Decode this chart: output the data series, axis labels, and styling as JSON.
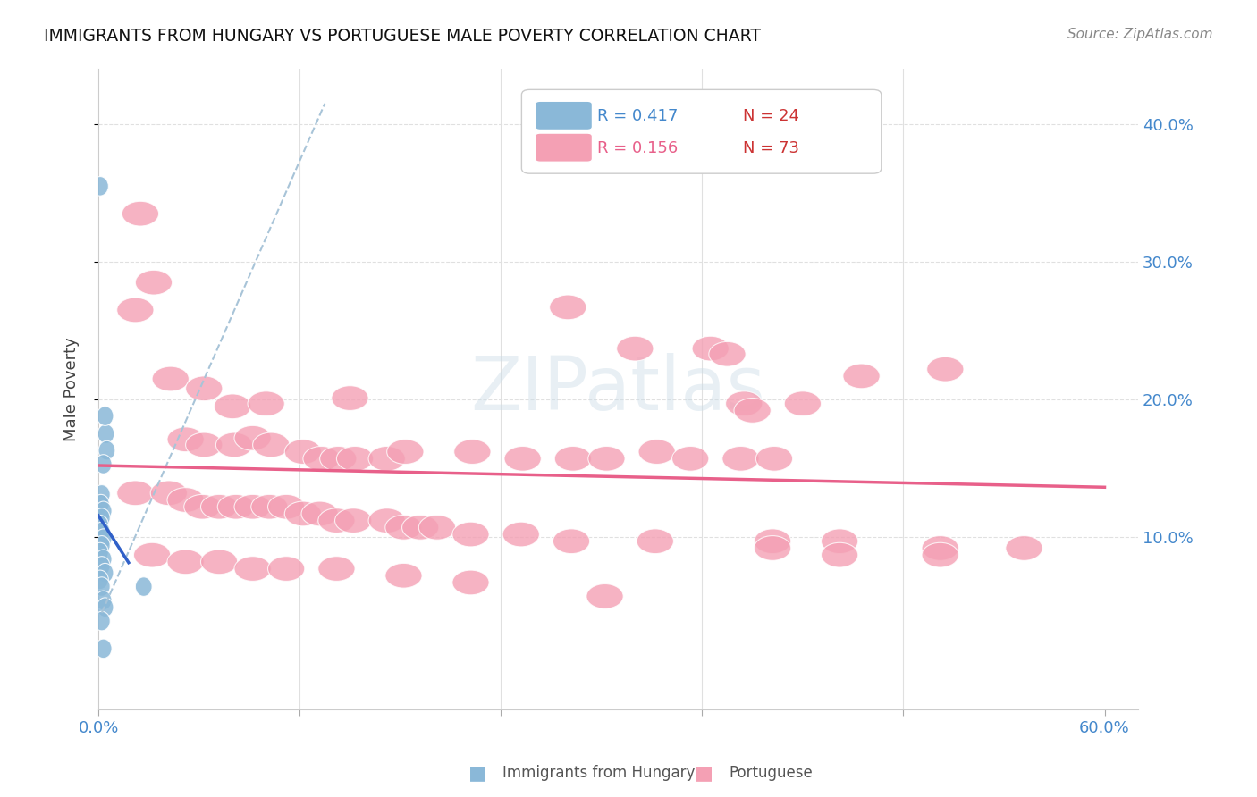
{
  "title": "IMMIGRANTS FROM HUNGARY VS PORTUGUESE MALE POVERTY CORRELATION CHART",
  "source": "Source: ZipAtlas.com",
  "ylabel": "Male Poverty",
  "xlim": [
    0.0,
    0.62
  ],
  "ylim": [
    -0.025,
    0.44
  ],
  "hungary_color": "#8ab8d8",
  "portuguese_color": "#f4a0b4",
  "hungary_line_color": "#3060c8",
  "portuguese_line_color": "#e8608a",
  "dashed_line_color": "#a8c4d8",
  "hungary_r": "0.417",
  "hungary_n": "24",
  "portuguese_r": "0.156",
  "portuguese_n": "73",
  "hungary_points": [
    [
      0.001,
      0.355
    ],
    [
      0.0045,
      0.175
    ],
    [
      0.005,
      0.163
    ],
    [
      0.003,
      0.153
    ],
    [
      0.004,
      0.188
    ],
    [
      0.002,
      0.131
    ],
    [
      0.0015,
      0.124
    ],
    [
      0.003,
      0.119
    ],
    [
      0.002,
      0.114
    ],
    [
      0.001,
      0.109
    ],
    [
      0.002,
      0.104
    ],
    [
      0.003,
      0.099
    ],
    [
      0.002,
      0.094
    ],
    [
      0.001,
      0.089
    ],
    [
      0.003,
      0.084
    ],
    [
      0.002,
      0.079
    ],
    [
      0.004,
      0.074
    ],
    [
      0.001,
      0.069
    ],
    [
      0.002,
      0.064
    ],
    [
      0.003,
      0.054
    ],
    [
      0.004,
      0.049
    ],
    [
      0.002,
      0.039
    ],
    [
      0.027,
      0.064
    ],
    [
      0.003,
      0.019
    ]
  ],
  "portuguese_points": [
    [
      0.025,
      0.335
    ],
    [
      0.033,
      0.285
    ],
    [
      0.022,
      0.265
    ],
    [
      0.043,
      0.215
    ],
    [
      0.08,
      0.195
    ],
    [
      0.063,
      0.208
    ],
    [
      0.1,
      0.197
    ],
    [
      0.15,
      0.201
    ],
    [
      0.28,
      0.267
    ],
    [
      0.32,
      0.237
    ],
    [
      0.365,
      0.237
    ],
    [
      0.375,
      0.233
    ],
    [
      0.385,
      0.197
    ],
    [
      0.39,
      0.192
    ],
    [
      0.42,
      0.197
    ],
    [
      0.455,
      0.217
    ],
    [
      0.505,
      0.222
    ],
    [
      0.052,
      0.171
    ],
    [
      0.063,
      0.167
    ],
    [
      0.081,
      0.167
    ],
    [
      0.092,
      0.172
    ],
    [
      0.103,
      0.167
    ],
    [
      0.122,
      0.162
    ],
    [
      0.133,
      0.157
    ],
    [
      0.143,
      0.157
    ],
    [
      0.153,
      0.157
    ],
    [
      0.172,
      0.157
    ],
    [
      0.183,
      0.162
    ],
    [
      0.223,
      0.162
    ],
    [
      0.253,
      0.157
    ],
    [
      0.283,
      0.157
    ],
    [
      0.303,
      0.157
    ],
    [
      0.333,
      0.162
    ],
    [
      0.353,
      0.157
    ],
    [
      0.383,
      0.157
    ],
    [
      0.403,
      0.157
    ],
    [
      0.022,
      0.132
    ],
    [
      0.042,
      0.132
    ],
    [
      0.052,
      0.127
    ],
    [
      0.062,
      0.122
    ],
    [
      0.072,
      0.122
    ],
    [
      0.082,
      0.122
    ],
    [
      0.092,
      0.122
    ],
    [
      0.102,
      0.122
    ],
    [
      0.112,
      0.122
    ],
    [
      0.122,
      0.117
    ],
    [
      0.132,
      0.117
    ],
    [
      0.142,
      0.112
    ],
    [
      0.152,
      0.112
    ],
    [
      0.172,
      0.112
    ],
    [
      0.182,
      0.107
    ],
    [
      0.192,
      0.107
    ],
    [
      0.202,
      0.107
    ],
    [
      0.222,
      0.102
    ],
    [
      0.252,
      0.102
    ],
    [
      0.282,
      0.097
    ],
    [
      0.332,
      0.097
    ],
    [
      0.402,
      0.097
    ],
    [
      0.442,
      0.097
    ],
    [
      0.502,
      0.092
    ],
    [
      0.552,
      0.092
    ],
    [
      0.032,
      0.087
    ],
    [
      0.052,
      0.082
    ],
    [
      0.072,
      0.082
    ],
    [
      0.092,
      0.077
    ],
    [
      0.112,
      0.077
    ],
    [
      0.142,
      0.077
    ],
    [
      0.182,
      0.072
    ],
    [
      0.222,
      0.067
    ],
    [
      0.302,
      0.057
    ],
    [
      0.402,
      0.092
    ],
    [
      0.442,
      0.087
    ],
    [
      0.502,
      0.087
    ]
  ]
}
